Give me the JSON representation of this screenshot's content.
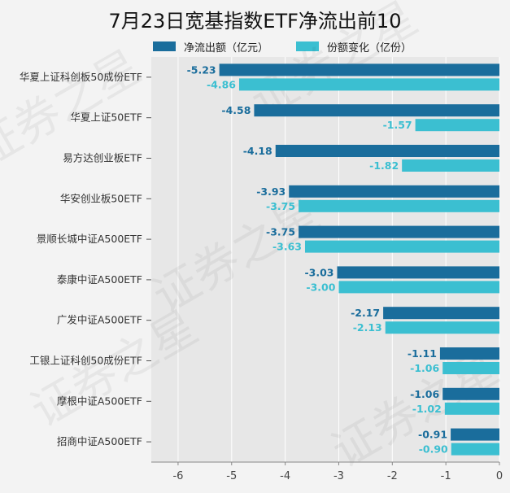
{
  "title": "7月23日宽基指数ETF净流出前10",
  "colors": {
    "net_outflow": "#1a6d9c",
    "share_change": "#3bbfd1",
    "plot_bg": "#e7e7e7",
    "grid": "#ffffff"
  },
  "watermark": "证券之星",
  "chart_data": {
    "type": "bar",
    "orientation": "horizontal",
    "categories": [
      "华夏上证科创板50成份ETF",
      "华夏上证50ETF",
      "易方达创业板ETF",
      "华安创业板50ETF",
      "景顺长城中证A500ETF",
      "泰康中证A500ETF",
      "广发中证A500ETF",
      "工银上证科创50成份ETF",
      "摩根中证A500ETF",
      "招商中证A500ETF"
    ],
    "series": [
      {
        "name": "净流出额（亿元）",
        "color": "#1a6d9c",
        "values": [
          -5.23,
          -4.58,
          -4.18,
          -3.93,
          -3.75,
          -3.03,
          -2.17,
          -1.11,
          -1.06,
          -0.91
        ],
        "labels": [
          "-5.23",
          "-4.58",
          "-4.18",
          "-3.93",
          "-3.75",
          "-3.03",
          "-2.17",
          "-1.11",
          "-1.06",
          "-0.91"
        ]
      },
      {
        "name": "份额变化（亿份）",
        "color": "#3bbfd1",
        "values": [
          -4.86,
          -1.57,
          -1.82,
          -3.75,
          -3.63,
          -3.0,
          -2.13,
          -1.06,
          -1.02,
          -0.9
        ],
        "labels": [
          "-4.86",
          "-1.57",
          "-1.82",
          "-3.75",
          "-3.63",
          "-3.00",
          "-2.13",
          "-1.06",
          "-1.02",
          "-0.90"
        ]
      }
    ],
    "xlim": [
      -6.5,
      0
    ],
    "xticks": [
      -6,
      -5,
      -4,
      -3,
      -2,
      -1,
      0
    ],
    "xtick_labels": [
      "-6",
      "-5",
      "-4",
      "-3",
      "-2",
      "-1",
      "0"
    ],
    "grid": true,
    "legend_position": "top"
  }
}
